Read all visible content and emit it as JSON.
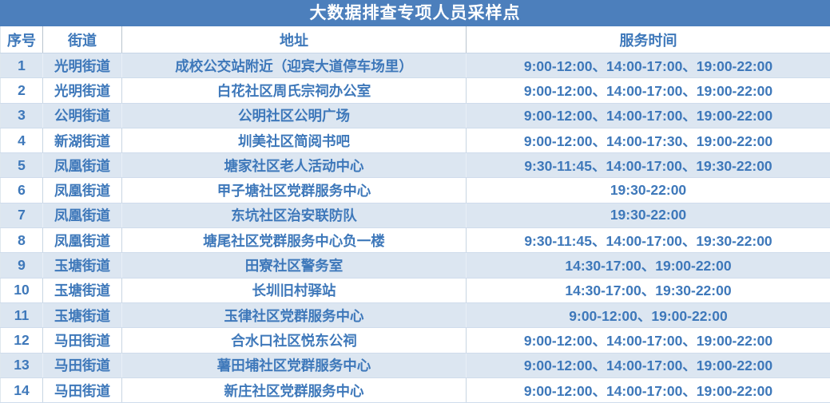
{
  "colors": {
    "title_bg": "#4c7fbc",
    "title_text": "#ffffff",
    "body_text": "#3e78ba",
    "stripe_row_bg": "#dce6f1",
    "plain_row_bg": "#ffffff"
  },
  "chart_data": {
    "type": "table",
    "title": "大数据排查专项人员采样点",
    "columns": [
      "序号",
      "街道",
      "地址",
      "服务时间"
    ],
    "rows": [
      [
        "1",
        "光明街道",
        "成校公交站附近（迎宾大道停车场里）",
        "9:00-12:00、14:00-17:00、19:00-22:00"
      ],
      [
        "2",
        "光明街道",
        "白花社区周氏宗祠办公室",
        "9:00-12:00、14:00-17:00、19:00-22:00"
      ],
      [
        "3",
        "公明街道",
        "公明社区公明广场",
        "9:00-12:00、14:00-17:00、19:00-22:00"
      ],
      [
        "4",
        "新湖街道",
        "圳美社区简阅书吧",
        "9:00-12:00、14:00-17:30、19:00-22:00"
      ],
      [
        "5",
        "凤凰街道",
        "塘家社区老人活动中心",
        "9:30-11:45、14:00-17:00、19:30-22:00"
      ],
      [
        "6",
        "凤凰街道",
        "甲子塘社区党群服务中心",
        "19:30-22:00"
      ],
      [
        "7",
        "凤凰街道",
        "东坑社区治安联防队",
        "19:30-22:00"
      ],
      [
        "8",
        "凤凰街道",
        "塘尾社区党群服务中心负一楼",
        "9:30-11:45、14:00-17:00、19:30-22:00"
      ],
      [
        "9",
        "玉塘街道",
        "田寮社区警务室",
        "14:30-17:00、19:00-22:00"
      ],
      [
        "10",
        "玉塘街道",
        "长圳旧村驿站",
        "14:30-17:00、19:30-22:00"
      ],
      [
        "11",
        "玉塘街道",
        "玉律社区党群服务中心",
        "9:00-12:00、19:00-22:00"
      ],
      [
        "12",
        "马田街道",
        "合水口社区悦东公祠",
        "9:00-12:00、14:00-17:00、19:00-22:00"
      ],
      [
        "13",
        "马田街道",
        "薯田埔社区党群服务中心",
        "9:00-12:00、14:00-17:00、19:00-22:00"
      ],
      [
        "14",
        "马田街道",
        "新庄社区党群服务中心",
        "9:00-12:00、14:00-17:00、19:00-22:00"
      ]
    ]
  }
}
